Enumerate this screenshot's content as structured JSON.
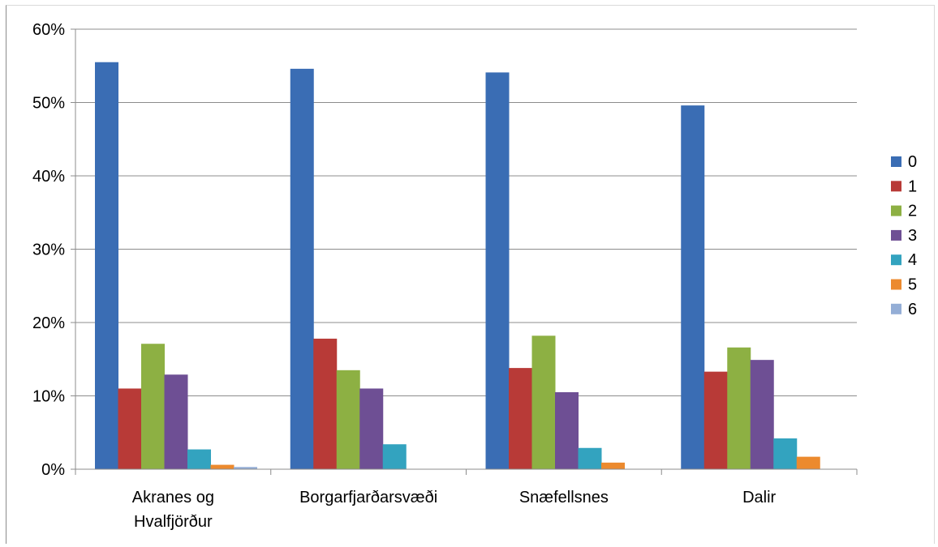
{
  "chart_data": {
    "type": "bar",
    "title": "",
    "xlabel": "",
    "ylabel": "",
    "ylim": [
      0,
      60
    ],
    "y_ticks": [
      0,
      10,
      20,
      30,
      40,
      50,
      60
    ],
    "y_tick_suffix": "%",
    "grid": true,
    "legend_position": "right",
    "categories": [
      [
        "Akranes og",
        "Hvalfjörður"
      ],
      [
        "Borgarfjarðarsvæði"
      ],
      [
        "Snæfellsnes"
      ],
      [
        "Dalir"
      ]
    ],
    "series": [
      {
        "name": "0",
        "color": "#3a6db4",
        "values": [
          55.5,
          54.6,
          54.1,
          49.6
        ]
      },
      {
        "name": "1",
        "color": "#b83a37",
        "values": [
          11.0,
          17.8,
          13.8,
          13.3
        ]
      },
      {
        "name": "2",
        "color": "#8db043",
        "values": [
          17.1,
          13.5,
          18.2,
          16.6
        ]
      },
      {
        "name": "3",
        "color": "#6e4f94",
        "values": [
          12.9,
          11.0,
          10.5,
          14.9
        ]
      },
      {
        "name": "4",
        "color": "#33a3bf",
        "values": [
          2.7,
          3.4,
          2.9,
          4.2
        ]
      },
      {
        "name": "5",
        "color": "#ec8a2e",
        "values": [
          0.6,
          0,
          0.9,
          1.7
        ]
      },
      {
        "name": "6",
        "color": "#94aed6",
        "values": [
          0.3,
          0,
          0,
          0
        ]
      }
    ]
  }
}
